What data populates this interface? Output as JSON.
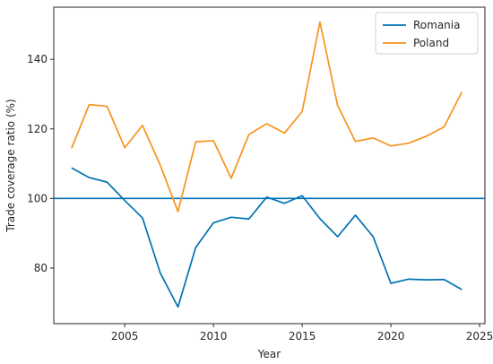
{
  "chart_data": {
    "type": "line",
    "xlabel": "Year",
    "ylabel": "Trade coverage ratio (%)",
    "xlim": [
      2001,
      2025.3
    ],
    "ylim": [
      64,
      155
    ],
    "xticks": [
      2005,
      2010,
      2015,
      2020,
      2025
    ],
    "yticks": [
      80,
      100,
      120,
      140
    ],
    "legend_position": "top-right",
    "x": [
      2002,
      2003,
      2004,
      2005,
      2006,
      2007,
      2008,
      2009,
      2010,
      2011,
      2012,
      2013,
      2014,
      2015,
      2016,
      2017,
      2018,
      2019,
      2020,
      2021,
      2022,
      2023,
      2024
    ],
    "series": [
      {
        "name": "Romania",
        "color": "#0072B2",
        "values": [
          108.8,
          106.0,
          104.7,
          99.4,
          94.4,
          78.6,
          68.8,
          85.9,
          93.0,
          94.6,
          94.1,
          100.4,
          98.6,
          100.8,
          94.2,
          89.0,
          95.2,
          89.0,
          75.6,
          76.8,
          76.6,
          76.7,
          73.8
        ]
      },
      {
        "name": "Poland",
        "color": "#F7931E",
        "values": [
          114.4,
          127.0,
          126.5,
          114.6,
          121.0,
          109.6,
          96.2,
          116.3,
          116.6,
          105.8,
          118.4,
          121.5,
          118.8,
          125.0,
          150.7,
          126.7,
          116.4,
          117.4,
          115.1,
          115.9,
          117.9,
          120.6,
          130.6
        ]
      }
    ],
    "reference_lines": [
      {
        "y": 100,
        "color": "#0072B2"
      }
    ]
  }
}
